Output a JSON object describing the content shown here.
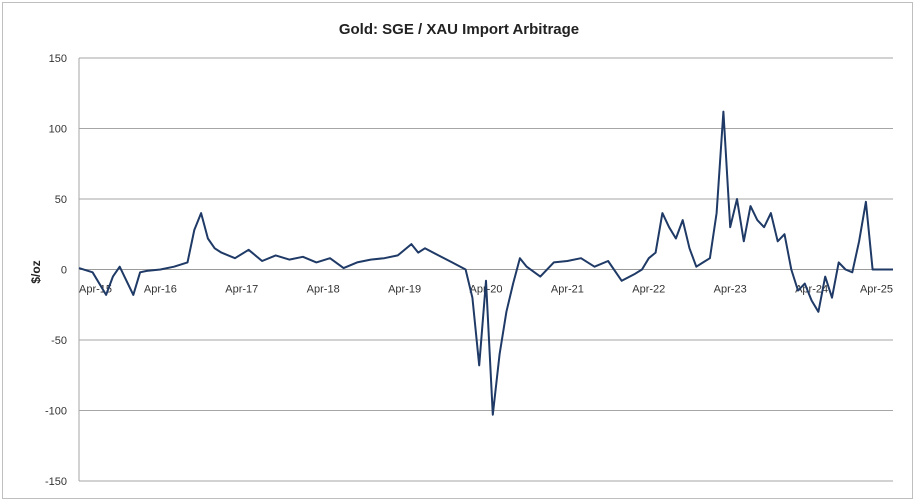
{
  "chart_data": {
    "type": "line",
    "title": "Gold: SGE / XAU Import Arbitrage",
    "ylabel": "$/oz",
    "xlabel": "",
    "ylim": [
      -150,
      150
    ],
    "yticks": [
      150,
      100,
      50,
      0,
      -50,
      -100,
      -150
    ],
    "xlim": [
      "2015-04",
      "2025-04"
    ],
    "xticks": [
      "Apr-15",
      "Apr-16",
      "Apr-17",
      "Apr-18",
      "Apr-19",
      "Apr-20",
      "Apr-21",
      "Apr-22",
      "Apr-23",
      "Apr-24",
      "Apr-25"
    ],
    "grid": "horizontal",
    "line_color": "#1f3a66",
    "series": [
      {
        "x": [
          "2015-04",
          "2015-06",
          "2015-08",
          "2015-09",
          "2015-10",
          "2015-12",
          "2016-01",
          "2016-02",
          "2016-04",
          "2016-06",
          "2016-08",
          "2016-09",
          "2016-10",
          "2016-11",
          "2016-12",
          "2017-01",
          "2017-03",
          "2017-05",
          "2017-07",
          "2017-09",
          "2017-11",
          "2018-01",
          "2018-03",
          "2018-05",
          "2018-07",
          "2018-09",
          "2018-11",
          "2019-01",
          "2019-03",
          "2019-05",
          "2019-06",
          "2019-07",
          "2019-09",
          "2019-11",
          "2020-01",
          "2020-02",
          "2020-03",
          "2020-04",
          "2020-05",
          "2020-06",
          "2020-07",
          "2020-08",
          "2020-09",
          "2020-10",
          "2020-12",
          "2021-02",
          "2021-04",
          "2021-06",
          "2021-08",
          "2021-10",
          "2021-12",
          "2022-02",
          "2022-03",
          "2022-04",
          "2022-05",
          "2022-06",
          "2022-07",
          "2022-08",
          "2022-09",
          "2022-10",
          "2022-11",
          "2022-12",
          "2023-01",
          "2023-02",
          "2023-03",
          "2023-04",
          "2023-05",
          "2023-06",
          "2023-07",
          "2023-08",
          "2023-09",
          "2023-10",
          "2023-11",
          "2023-12",
          "2024-01",
          "2024-02",
          "2024-03",
          "2024-04",
          "2024-05",
          "2024-06",
          "2024-07",
          "2024-08",
          "2024-09",
          "2024-10",
          "2024-11",
          "2024-12",
          "2025-01",
          "2025-02",
          "2025-03",
          "2025-04"
        ],
        "y": [
          1,
          -2,
          -18,
          -5,
          2,
          -18,
          -2,
          -1,
          0,
          2,
          5,
          28,
          40,
          22,
          15,
          12,
          8,
          14,
          6,
          10,
          7,
          9,
          5,
          8,
          1,
          5,
          7,
          8,
          10,
          18,
          12,
          15,
          10,
          5,
          0,
          -20,
          -68,
          -8,
          -103,
          -60,
          -30,
          -10,
          8,
          2,
          -5,
          5,
          6,
          8,
          2,
          6,
          -8,
          -3,
          0,
          8,
          12,
          40,
          30,
          22,
          35,
          15,
          2,
          5,
          8,
          40,
          112,
          30,
          50,
          20,
          45,
          35,
          30,
          40,
          20,
          25,
          0,
          -15,
          -10,
          -22,
          -30,
          -5,
          -20,
          5,
          0,
          -2,
          20,
          48,
          0,
          0,
          0,
          0
        ]
      }
    ]
  }
}
